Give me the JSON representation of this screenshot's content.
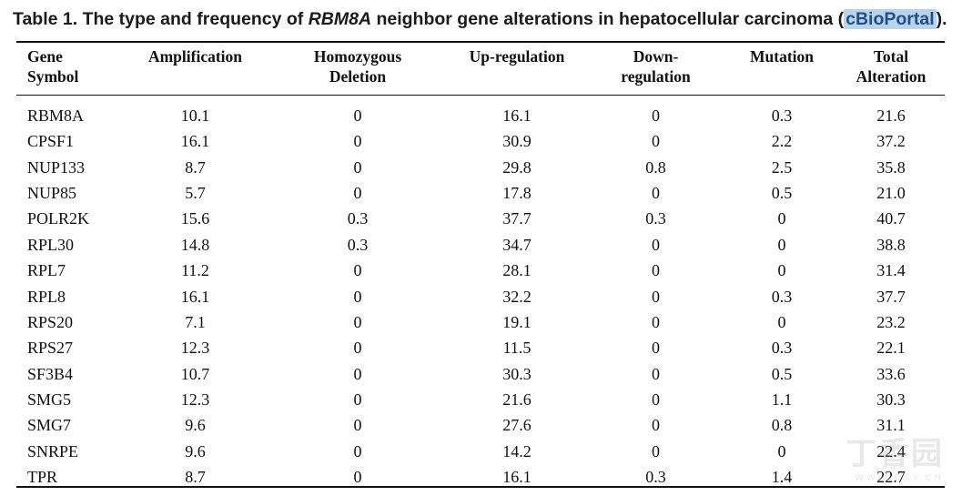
{
  "caption": {
    "prefix": "Table 1. The type and frequency of ",
    "gene": "RBM8A",
    "middle": " neighbor gene alterations in hepatocellular carcinoma (",
    "source": "cBioPortal",
    "suffix": ")."
  },
  "table": {
    "headers": [
      [
        "Gene",
        "Symbol"
      ],
      [
        "Amplification"
      ],
      [
        "Homozygous",
        "Deletion"
      ],
      [
        "Up-regulation"
      ],
      [
        "Down-",
        "regulation"
      ],
      [
        "Mutation"
      ],
      [
        "Total",
        "Alteration"
      ]
    ],
    "rows": [
      [
        "RBM8A",
        "10.1",
        "0",
        "16.1",
        "0",
        "0.3",
        "21.6"
      ],
      [
        "CPSF1",
        "16.1",
        "0",
        "30.9",
        "0",
        "2.2",
        "37.2"
      ],
      [
        "NUP133",
        "8.7",
        "0",
        "29.8",
        "0.8",
        "2.5",
        "35.8"
      ],
      [
        "NUP85",
        "5.7",
        "0",
        "17.8",
        "0",
        "0.5",
        "21.0"
      ],
      [
        "POLR2K",
        "15.6",
        "0.3",
        "37.7",
        "0.3",
        "0",
        "40.7"
      ],
      [
        "RPL30",
        "14.8",
        "0.3",
        "34.7",
        "0",
        "0",
        "38.8"
      ],
      [
        "RPL7",
        "11.2",
        "0",
        "28.1",
        "0",
        "0",
        "31.4"
      ],
      [
        "RPL8",
        "16.1",
        "0",
        "32.2",
        "0",
        "0.3",
        "37.7"
      ],
      [
        "RPS20",
        "7.1",
        "0",
        "19.1",
        "0",
        "0",
        "23.2"
      ],
      [
        "RPS27",
        "12.3",
        "0",
        "11.5",
        "0",
        "0.3",
        "22.1"
      ],
      [
        "SF3B4",
        "10.7",
        "0",
        "30.3",
        "0",
        "0.5",
        "33.6"
      ],
      [
        "SMG5",
        "12.3",
        "0",
        "21.6",
        "0",
        "1.1",
        "30.3"
      ],
      [
        "SMG7",
        "9.6",
        "0",
        "27.6",
        "0",
        "0.8",
        "31.1"
      ],
      [
        "SNRPE",
        "9.6",
        "0",
        "14.2",
        "0",
        "0",
        "22.4"
      ],
      [
        "TPR",
        "8.7",
        "0",
        "16.1",
        "0.3",
        "1.4",
        "22.7"
      ]
    ]
  },
  "watermark": {
    "main": "丁香园",
    "sub": "WWW.DXY.CN"
  }
}
